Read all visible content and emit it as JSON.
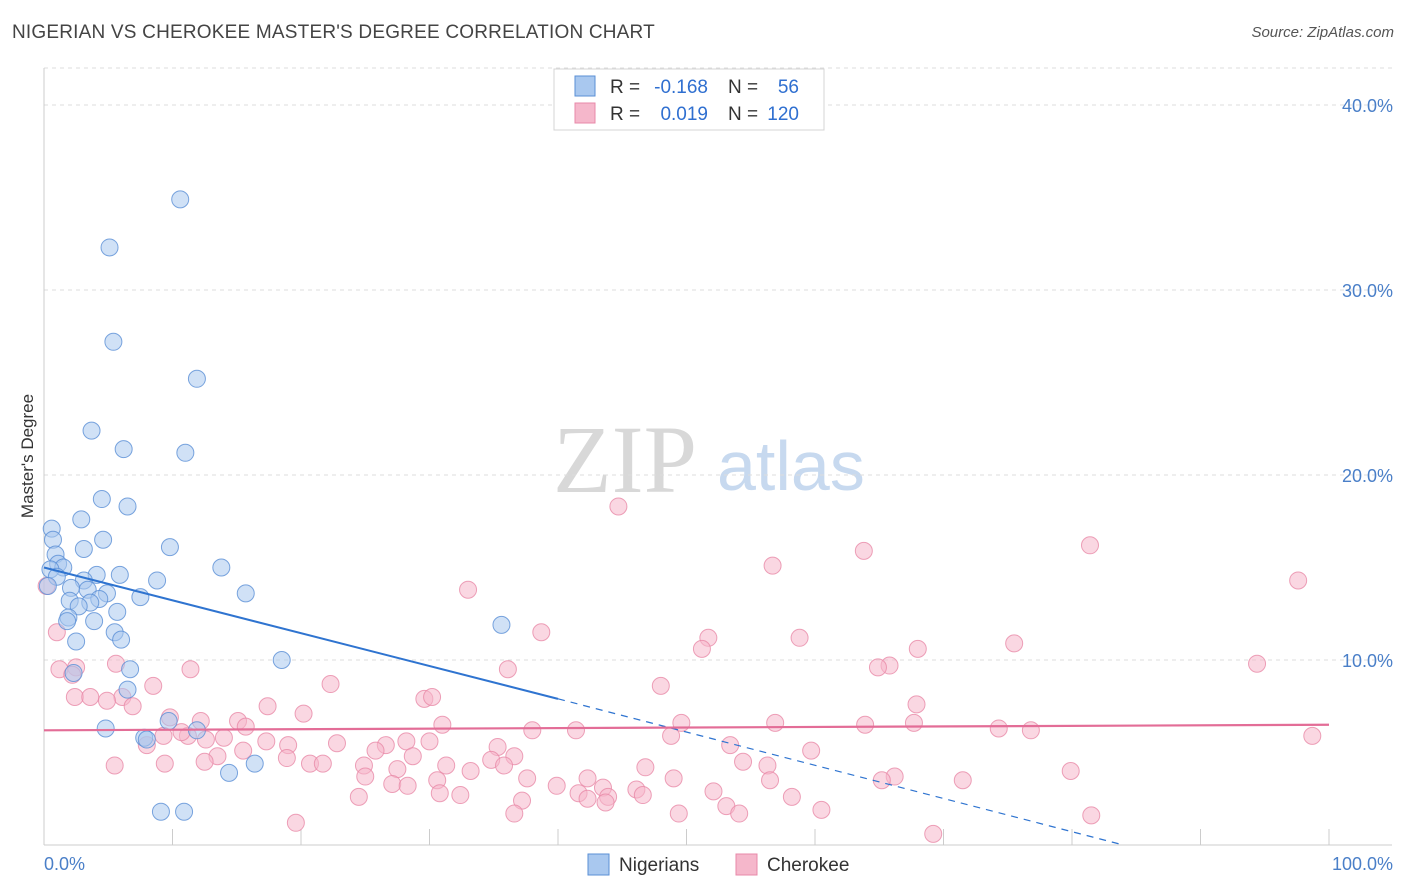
{
  "title": "NIGERIAN VS CHEROKEE MASTER'S DEGREE CORRELATION CHART",
  "source": "Source: ZipAtlas.com",
  "watermark": {
    "left": "ZIP",
    "right": "atlas"
  },
  "colors": {
    "nigerians_fill": "#a9c8ef",
    "nigerians_stroke": "#5a8fd6",
    "nigerians_line": "#2f74d0",
    "cherokee_fill": "#f5b7cb",
    "cherokee_stroke": "#e889a8",
    "cherokee_line": "#e36d97",
    "value_text": "#2f6fd0",
    "grid": "#dddddd"
  },
  "legend": {
    "rows": [
      {
        "r_label": "R =",
        "r_value": "-0.168",
        "n_label": "N =",
        "n_value": "56"
      },
      {
        "r_label": "R =",
        "r_value": "0.019",
        "n_label": "N =",
        "n_value": "120"
      }
    ]
  },
  "chart_data": {
    "type": "scatter",
    "title": "NIGERIAN VS CHEROKEE MASTER'S DEGREE CORRELATION CHART",
    "xlabel": "",
    "ylabel": "Master's Degree",
    "xlim": [
      0,
      100
    ],
    "ylim": [
      0,
      42
    ],
    "x_tick_labels": [
      "0.0%",
      "100.0%"
    ],
    "y_ticks": [
      10,
      20,
      30,
      40
    ],
    "y_tick_labels": [
      "10.0%",
      "20.0%",
      "30.0%",
      "40.0%"
    ],
    "bottom_legend": [
      "Nigerians",
      "Cherokee"
    ],
    "series": [
      {
        "name": "Nigerians",
        "trend": {
          "x0": 0,
          "y0": 15.0,
          "x1": 40,
          "y1": 7.9,
          "dash_to_x": 84,
          "dash_to_y": 0
        },
        "points": [
          [
            10.6,
            34.9
          ],
          [
            5.1,
            32.3
          ],
          [
            5.4,
            27.2
          ],
          [
            11.9,
            25.2
          ],
          [
            3.7,
            22.4
          ],
          [
            6.2,
            21.4
          ],
          [
            11.0,
            21.2
          ],
          [
            4.5,
            18.7
          ],
          [
            6.5,
            18.3
          ],
          [
            2.9,
            17.6
          ],
          [
            0.6,
            17.1
          ],
          [
            0.7,
            16.5
          ],
          [
            4.6,
            16.5
          ],
          [
            9.8,
            16.1
          ],
          [
            3.1,
            16.0
          ],
          [
            0.9,
            15.7
          ],
          [
            1.1,
            15.2
          ],
          [
            1.5,
            15.0
          ],
          [
            13.8,
            15.0
          ],
          [
            0.5,
            14.9
          ],
          [
            4.1,
            14.6
          ],
          [
            5.9,
            14.6
          ],
          [
            1.0,
            14.5
          ],
          [
            3.1,
            14.3
          ],
          [
            8.8,
            14.3
          ],
          [
            0.3,
            14.0
          ],
          [
            2.1,
            13.9
          ],
          [
            3.4,
            13.8
          ],
          [
            4.9,
            13.6
          ],
          [
            15.7,
            13.6
          ],
          [
            7.5,
            13.4
          ],
          [
            2.0,
            13.2
          ],
          [
            4.3,
            13.3
          ],
          [
            3.6,
            13.1
          ],
          [
            2.7,
            12.9
          ],
          [
            5.7,
            12.6
          ],
          [
            1.9,
            12.3
          ],
          [
            1.8,
            12.1
          ],
          [
            3.9,
            12.1
          ],
          [
            35.6,
            11.9
          ],
          [
            5.5,
            11.5
          ],
          [
            6.0,
            11.1
          ],
          [
            2.5,
            11.0
          ],
          [
            18.5,
            10.0
          ],
          [
            6.7,
            9.5
          ],
          [
            2.3,
            9.3
          ],
          [
            6.5,
            8.4
          ],
          [
            9.7,
            6.7
          ],
          [
            4.8,
            6.3
          ],
          [
            11.9,
            6.2
          ],
          [
            7.8,
            5.8
          ],
          [
            8.0,
            5.7
          ],
          [
            16.4,
            4.4
          ],
          [
            14.4,
            3.9
          ],
          [
            9.1,
            1.8
          ],
          [
            10.9,
            1.8
          ]
        ]
      },
      {
        "name": "Cherokee",
        "trend": {
          "x0": 0,
          "y0": 6.2,
          "x1": 100,
          "y1": 6.5
        },
        "points": [
          [
            44.7,
            18.3
          ],
          [
            81.4,
            16.2
          ],
          [
            63.8,
            15.9
          ],
          [
            56.7,
            15.1
          ],
          [
            97.6,
            14.3
          ],
          [
            33.0,
            13.8
          ],
          [
            0.2,
            14.0
          ],
          [
            38.7,
            11.5
          ],
          [
            51.7,
            11.2
          ],
          [
            58.8,
            11.2
          ],
          [
            75.5,
            10.9
          ],
          [
            68.0,
            10.6
          ],
          [
            51.2,
            10.6
          ],
          [
            65.8,
            9.7
          ],
          [
            64.9,
            9.6
          ],
          [
            36.1,
            9.5
          ],
          [
            11.4,
            9.5
          ],
          [
            1.2,
            9.5
          ],
          [
            2.5,
            9.6
          ],
          [
            94.4,
            9.8
          ],
          [
            5.6,
            9.8
          ],
          [
            2.2,
            9.2
          ],
          [
            48.0,
            8.6
          ],
          [
            8.5,
            8.6
          ],
          [
            22.3,
            8.7
          ],
          [
            6.1,
            8.0
          ],
          [
            29.6,
            7.9
          ],
          [
            30.2,
            8.0
          ],
          [
            2.4,
            8.0
          ],
          [
            3.6,
            8.0
          ],
          [
            4.9,
            7.8
          ],
          [
            67.9,
            7.6
          ],
          [
            17.4,
            7.5
          ],
          [
            6.9,
            7.5
          ],
          [
            20.2,
            7.1
          ],
          [
            9.8,
            6.9
          ],
          [
            12.2,
            6.7
          ],
          [
            15.1,
            6.7
          ],
          [
            49.6,
            6.6
          ],
          [
            56.9,
            6.6
          ],
          [
            31.0,
            6.5
          ],
          [
            63.9,
            6.5
          ],
          [
            76.8,
            6.2
          ],
          [
            38.0,
            6.2
          ],
          [
            41.4,
            6.2
          ],
          [
            11.2,
            5.9
          ],
          [
            12.6,
            5.7
          ],
          [
            14.0,
            5.8
          ],
          [
            17.3,
            5.6
          ],
          [
            22.8,
            5.5
          ],
          [
            26.6,
            5.4
          ],
          [
            28.2,
            5.6
          ],
          [
            30.0,
            5.6
          ],
          [
            35.3,
            5.3
          ],
          [
            8.0,
            5.4
          ],
          [
            9.3,
            5.9
          ],
          [
            10.7,
            6.1
          ],
          [
            19.0,
            5.4
          ],
          [
            25.8,
            5.1
          ],
          [
            15.5,
            5.1
          ],
          [
            53.4,
            5.4
          ],
          [
            59.7,
            5.1
          ],
          [
            36.6,
            4.8
          ],
          [
            34.8,
            4.6
          ],
          [
            28.7,
            4.8
          ],
          [
            13.5,
            4.8
          ],
          [
            18.9,
            4.7
          ],
          [
            12.5,
            4.5
          ],
          [
            20.7,
            4.4
          ],
          [
            21.7,
            4.4
          ],
          [
            9.4,
            4.4
          ],
          [
            24.9,
            4.3
          ],
          [
            35.8,
            4.3
          ],
          [
            31.3,
            4.3
          ],
          [
            46.8,
            4.2
          ],
          [
            56.3,
            4.3
          ],
          [
            54.4,
            4.5
          ],
          [
            79.9,
            4.0
          ],
          [
            27.5,
            4.1
          ],
          [
            33.2,
            4.0
          ],
          [
            25.0,
            3.7
          ],
          [
            37.6,
            3.6
          ],
          [
            30.6,
            3.5
          ],
          [
            42.3,
            3.6
          ],
          [
            49.0,
            3.6
          ],
          [
            56.5,
            3.5
          ],
          [
            66.2,
            3.7
          ],
          [
            65.2,
            3.5
          ],
          [
            71.5,
            3.5
          ],
          [
            27.1,
            3.3
          ],
          [
            28.3,
            3.2
          ],
          [
            39.9,
            3.2
          ],
          [
            43.5,
            3.1
          ],
          [
            46.1,
            3.0
          ],
          [
            52.1,
            2.9
          ],
          [
            41.6,
            2.8
          ],
          [
            43.9,
            2.6
          ],
          [
            30.8,
            2.8
          ],
          [
            32.4,
            2.7
          ],
          [
            42.3,
            2.5
          ],
          [
            58.2,
            2.6
          ],
          [
            24.5,
            2.6
          ],
          [
            37.2,
            2.4
          ],
          [
            43.7,
            2.3
          ],
          [
            46.6,
            2.7
          ],
          [
            53.1,
            2.1
          ],
          [
            60.5,
            1.9
          ],
          [
            54.1,
            1.7
          ],
          [
            36.6,
            1.7
          ],
          [
            81.5,
            1.6
          ],
          [
            49.4,
            1.7
          ],
          [
            19.6,
            1.2
          ],
          [
            69.2,
            0.6
          ],
          [
            98.7,
            5.9
          ],
          [
            67.7,
            6.6
          ],
          [
            15.7,
            6.4
          ],
          [
            48.8,
            5.9
          ],
          [
            74.3,
            6.3
          ],
          [
            5.5,
            4.3
          ],
          [
            1.0,
            11.5
          ]
        ]
      }
    ]
  }
}
